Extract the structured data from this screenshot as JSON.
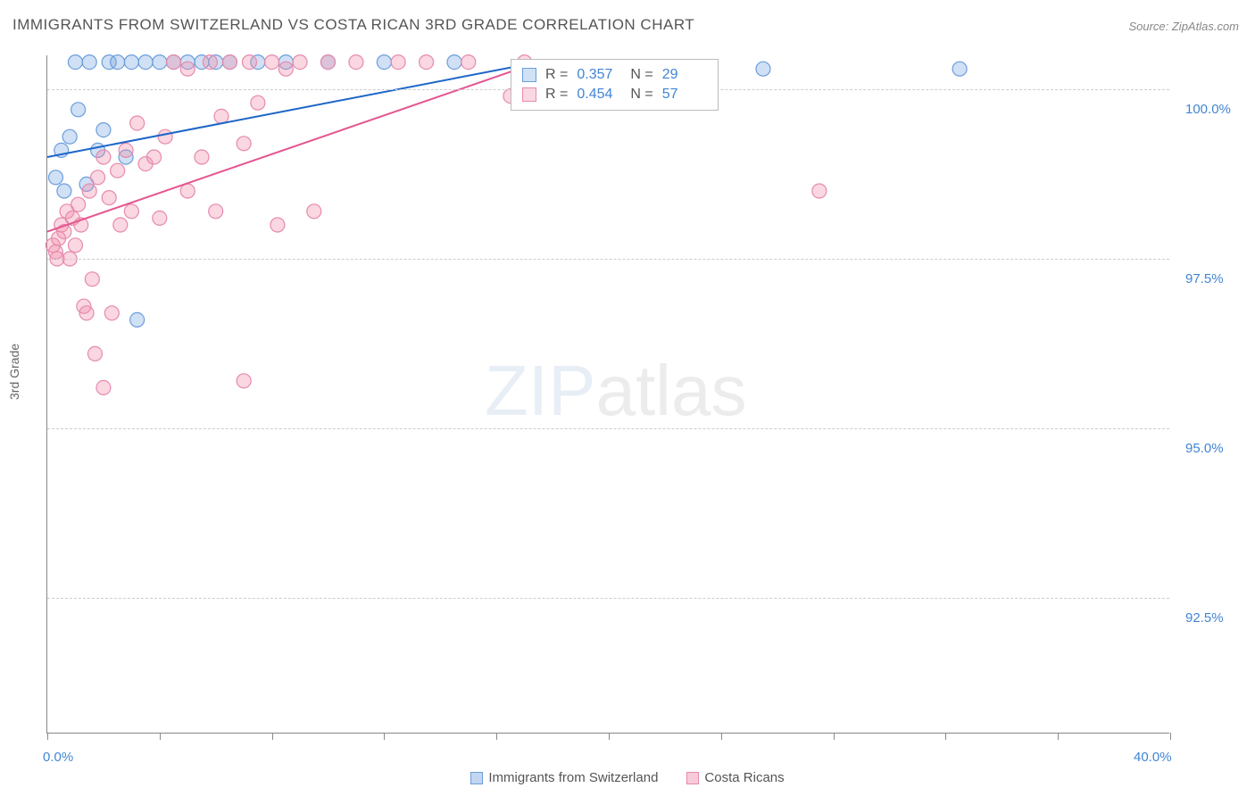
{
  "title": "IMMIGRANTS FROM SWITZERLAND VS COSTA RICAN 3RD GRADE CORRELATION CHART",
  "source_label": "Source: ZipAtlas.com",
  "y_axis_label": "3rd Grade",
  "watermark_zip": "ZIP",
  "watermark_atlas": "atlas",
  "chart": {
    "type": "scatter",
    "xlim": [
      0,
      40
    ],
    "ylim": [
      90.5,
      100.5
    ],
    "x_tick_positions": [
      0,
      4,
      8,
      12,
      16,
      20,
      24,
      28,
      32,
      36,
      40
    ],
    "x_tick_labels": {
      "0": "0.0%",
      "40": "40.0%"
    },
    "y_ticks": [
      92.5,
      95.0,
      97.5,
      100.0
    ],
    "y_tick_labels": [
      "92.5%",
      "95.0%",
      "97.5%",
      "100.0%"
    ],
    "grid_color": "#cccccc",
    "background_color": "#ffffff",
    "axis_color": "#888888",
    "label_color": "#4285d4",
    "series": [
      {
        "name": "Immigrants from Switzerland",
        "color_fill": "rgba(120,165,225,0.35)",
        "color_stroke": "#6a9edb",
        "line_color": "#1e66c8",
        "r_value": "0.357",
        "n_value": "29",
        "trend_line": {
          "x1": 0,
          "y1": 99.0,
          "x2": 17.5,
          "y2": 100.4
        },
        "points": [
          [
            0.3,
            98.7
          ],
          [
            0.5,
            99.1
          ],
          [
            0.6,
            98.5
          ],
          [
            0.8,
            99.3
          ],
          [
            1.0,
            100.4
          ],
          [
            1.1,
            99.7
          ],
          [
            1.4,
            98.6
          ],
          [
            1.5,
            100.4
          ],
          [
            1.8,
            99.1
          ],
          [
            2.0,
            99.4
          ],
          [
            2.2,
            100.4
          ],
          [
            2.5,
            100.4
          ],
          [
            2.8,
            99.0
          ],
          [
            3.0,
            100.4
          ],
          [
            3.5,
            100.4
          ],
          [
            3.2,
            96.6
          ],
          [
            4.0,
            100.4
          ],
          [
            4.5,
            100.4
          ],
          [
            5.0,
            100.4
          ],
          [
            5.5,
            100.4
          ],
          [
            6.0,
            100.4
          ],
          [
            6.5,
            100.4
          ],
          [
            7.5,
            100.4
          ],
          [
            8.5,
            100.4
          ],
          [
            10.0,
            100.4
          ],
          [
            12.0,
            100.4
          ],
          [
            14.5,
            100.4
          ],
          [
            25.5,
            100.3
          ],
          [
            32.5,
            100.3
          ]
        ]
      },
      {
        "name": "Costa Ricans",
        "color_fill": "rgba(240,140,170,0.35)",
        "color_stroke": "#e68aad",
        "line_color": "#e55590",
        "r_value": "0.454",
        "n_value": "57",
        "trend_line": {
          "x1": 0,
          "y1": 97.9,
          "x2": 17.5,
          "y2": 100.4
        },
        "points": [
          [
            0.2,
            97.7
          ],
          [
            0.3,
            97.6
          ],
          [
            0.35,
            97.5
          ],
          [
            0.4,
            97.8
          ],
          [
            0.5,
            98.0
          ],
          [
            0.6,
            97.9
          ],
          [
            0.7,
            98.2
          ],
          [
            0.8,
            97.5
          ],
          [
            0.9,
            98.1
          ],
          [
            1.0,
            97.7
          ],
          [
            1.1,
            98.3
          ],
          [
            1.2,
            98.0
          ],
          [
            1.3,
            96.8
          ],
          [
            1.4,
            96.7
          ],
          [
            1.5,
            98.5
          ],
          [
            1.6,
            97.2
          ],
          [
            1.7,
            96.1
          ],
          [
            1.8,
            98.7
          ],
          [
            2.0,
            95.6
          ],
          [
            2.0,
            99.0
          ],
          [
            2.2,
            98.4
          ],
          [
            2.3,
            96.7
          ],
          [
            2.5,
            98.8
          ],
          [
            2.6,
            98.0
          ],
          [
            2.8,
            99.1
          ],
          [
            3.0,
            98.2
          ],
          [
            3.2,
            99.5
          ],
          [
            3.5,
            98.9
          ],
          [
            3.8,
            99.0
          ],
          [
            4.0,
            98.1
          ],
          [
            4.2,
            99.3
          ],
          [
            4.5,
            100.4
          ],
          [
            5.0,
            98.5
          ],
          [
            5.0,
            100.3
          ],
          [
            5.5,
            99.0
          ],
          [
            5.8,
            100.4
          ],
          [
            6.0,
            98.2
          ],
          [
            6.2,
            99.6
          ],
          [
            6.5,
            100.4
          ],
          [
            7.0,
            95.7
          ],
          [
            7.0,
            99.2
          ],
          [
            7.2,
            100.4
          ],
          [
            7.5,
            99.8
          ],
          [
            8.0,
            100.4
          ],
          [
            8.2,
            98.0
          ],
          [
            8.5,
            100.3
          ],
          [
            9.0,
            100.4
          ],
          [
            9.5,
            98.2
          ],
          [
            10.0,
            100.4
          ],
          [
            11.0,
            100.4
          ],
          [
            12.5,
            100.4
          ],
          [
            13.5,
            100.4
          ],
          [
            15.0,
            100.4
          ],
          [
            16.5,
            99.9
          ],
          [
            17.0,
            100.4
          ],
          [
            18.0,
            100.3
          ],
          [
            27.5,
            98.5
          ]
        ]
      }
    ]
  },
  "legend_bottom": [
    {
      "label": "Immigrants from Switzerland",
      "fill": "rgba(120,165,225,0.45)",
      "stroke": "#6a9edb"
    },
    {
      "label": "Costa Ricans",
      "fill": "rgba(240,140,170,0.45)",
      "stroke": "#e68aad"
    }
  ]
}
